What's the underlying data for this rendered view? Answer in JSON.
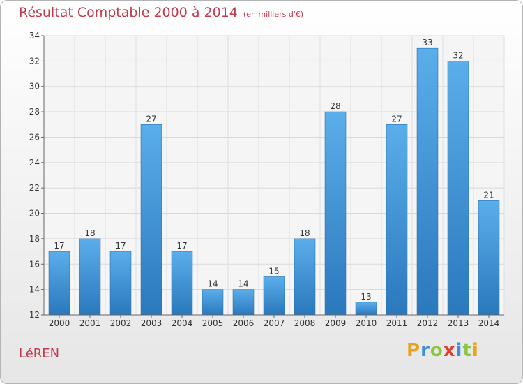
{
  "title": {
    "main": "Résultat Comptable 2000 à 2014",
    "unit": "(en milliers d'€)"
  },
  "commune": "LéREN",
  "logo": {
    "letters": [
      "P",
      "r",
      "o",
      "x",
      "i",
      "t",
      "i"
    ],
    "colors": [
      "#e8a21c",
      "#3d8fd6",
      "#8cc63f",
      "#e63c2f",
      "#3d8fd6",
      "#8cc63f",
      "#e8a21c"
    ]
  },
  "chart_data": {
    "type": "bar",
    "title": "Résultat Comptable 2000 à 2014",
    "xlabel": "",
    "ylabel": "",
    "ylim": [
      12,
      34
    ],
    "yticks": [
      12,
      14,
      16,
      18,
      20,
      22,
      24,
      26,
      28,
      30,
      32,
      34
    ],
    "grid": true,
    "categories": [
      "2000",
      "2001",
      "2002",
      "2003",
      "2004",
      "2005",
      "2006",
      "2007",
      "2008",
      "2009",
      "2010",
      "2011",
      "2012",
      "2013",
      "2014"
    ],
    "values": [
      17,
      18,
      17,
      27,
      17,
      14,
      14,
      15,
      18,
      28,
      13,
      27,
      33,
      32,
      21
    ],
    "bar_color": "#3d8fd6"
  }
}
